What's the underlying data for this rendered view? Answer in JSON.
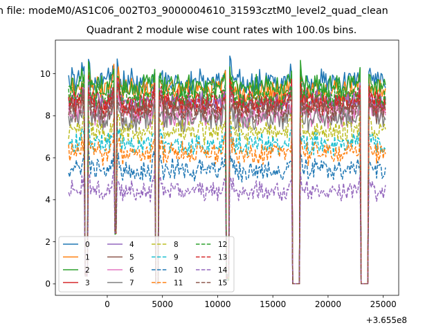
{
  "suptitle": "n file: modeM0/AS1C06_002T03_9000004610_31593cztM0_level2_quad_clean",
  "chart_data": {
    "type": "line",
    "title": "Quadrant 2 module wise count rates with 100.0s bins.",
    "xlabel": "",
    "ylabel": "",
    "x_offset_label": "+3.655e8",
    "xlim": [
      -4700,
      26400
    ],
    "ylim": [
      -0.55,
      11.6
    ],
    "x_ticks": [
      0,
      5000,
      10000,
      15000,
      20000,
      25000
    ],
    "x_tick_labels": [
      "0",
      "5000",
      "10000",
      "15000",
      "20000",
      "25000"
    ],
    "y_ticks": [
      0,
      2,
      4,
      6,
      8,
      10
    ],
    "y_tick_labels": [
      "0",
      "2",
      "4",
      "6",
      "8",
      "10"
    ],
    "x_range": [
      -3500,
      25200
    ],
    "bin_seconds": 100,
    "gaps": [
      {
        "start": -2000,
        "end": -1800,
        "floor": 0.5
      },
      {
        "start": 700,
        "end": 800,
        "floor": 2.5
      },
      {
        "start": 4400,
        "end": 4600,
        "floor": 0.0
      },
      {
        "start": 10800,
        "end": 11000,
        "floor": 0.3
      },
      {
        "start": 16800,
        "end": 17400,
        "floor": 0.0
      },
      {
        "start": 23000,
        "end": 23600,
        "floor": 0.0
      }
    ],
    "legend": {
      "location": "lower-left",
      "columns": 4
    },
    "series": [
      {
        "name": "0",
        "color": "#1f77b4",
        "dash": "solid",
        "level": 9.6,
        "noise": 0.45
      },
      {
        "name": "1",
        "color": "#ff7f0e",
        "dash": "solid",
        "level": 9.2,
        "noise": 0.45
      },
      {
        "name": "2",
        "color": "#2ca02c",
        "dash": "solid",
        "level": 9.4,
        "noise": 0.4
      },
      {
        "name": "3",
        "color": "#d62728",
        "dash": "solid",
        "level": 8.7,
        "noise": 0.4
      },
      {
        "name": "4",
        "color": "#9467bd",
        "dash": "solid",
        "level": 8.6,
        "noise": 0.4
      },
      {
        "name": "5",
        "color": "#8c564b",
        "dash": "solid",
        "level": 8.4,
        "noise": 0.4
      },
      {
        "name": "6",
        "color": "#e377c2",
        "dash": "solid",
        "level": 8.0,
        "noise": 0.4
      },
      {
        "name": "7",
        "color": "#7f7f7f",
        "dash": "solid",
        "level": 7.8,
        "noise": 0.45
      },
      {
        "name": "8",
        "color": "#bcbd22",
        "dash": "dashed",
        "level": 7.2,
        "noise": 0.4
      },
      {
        "name": "9",
        "color": "#17becf",
        "dash": "dashed",
        "level": 6.6,
        "noise": 0.4
      },
      {
        "name": "10",
        "color": "#1f77b4",
        "dash": "dashed",
        "level": 5.4,
        "noise": 0.35
      },
      {
        "name": "11",
        "color": "#ff7f0e",
        "dash": "dashed",
        "level": 6.2,
        "noise": 0.4
      },
      {
        "name": "12",
        "color": "#2ca02c",
        "dash": "dashed",
        "level": 8.9,
        "noise": 0.4
      },
      {
        "name": "13",
        "color": "#d62728",
        "dash": "dashed",
        "level": 8.5,
        "noise": 0.4
      },
      {
        "name": "14",
        "color": "#9467bd",
        "dash": "dashed",
        "level": 4.4,
        "noise": 0.3
      },
      {
        "name": "15",
        "color": "#8c564b",
        "dash": "dashed",
        "level": 8.2,
        "noise": 0.4
      }
    ]
  }
}
